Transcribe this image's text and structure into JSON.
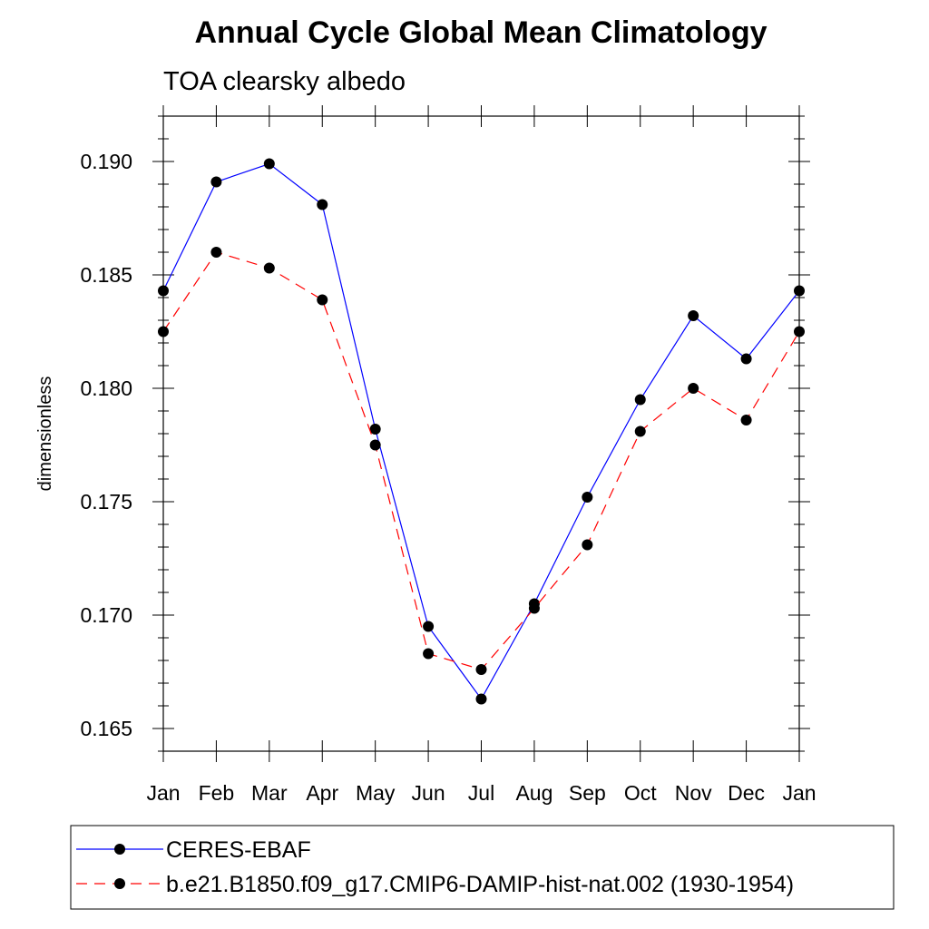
{
  "chart_data": {
    "type": "line",
    "title": "Annual Cycle Global Mean Climatology",
    "subtitle": "TOA clearsky albedo",
    "ylabel": "dimensionless",
    "xlabel": "",
    "categories": [
      "Jan",
      "Feb",
      "Mar",
      "Apr",
      "May",
      "Jun",
      "Jul",
      "Aug",
      "Sep",
      "Oct",
      "Nov",
      "Dec",
      "Jan"
    ],
    "ylim": [
      0.164,
      0.192
    ],
    "yticks": [
      "0.165",
      "0.170",
      "0.175",
      "0.180",
      "0.185",
      "0.190"
    ],
    "ytick_values": [
      0.165,
      0.17,
      0.175,
      0.18,
      0.185,
      0.19
    ],
    "grid": false,
    "legend_position": "bottom",
    "series": [
      {
        "name": "CERES-EBAF",
        "color": "#0000ff",
        "line_style": "solid",
        "marker": "filled-circle",
        "values": [
          0.1843,
          0.1891,
          0.1899,
          0.1881,
          0.1782,
          0.1695,
          0.1663,
          0.1705,
          0.1752,
          0.1795,
          0.1832,
          0.1813,
          0.1843
        ]
      },
      {
        "name": "b.e21.B1850.f09_g17.CMIP6-DAMIP-hist-nat.002 (1930-1954)",
        "color": "#ff0000",
        "line_style": "dashed",
        "marker": "filled-circle",
        "values": [
          0.1825,
          0.186,
          0.1853,
          0.1839,
          0.1775,
          0.1683,
          0.1676,
          0.1703,
          0.1731,
          0.1781,
          0.18,
          0.1786,
          0.1825
        ]
      }
    ]
  }
}
